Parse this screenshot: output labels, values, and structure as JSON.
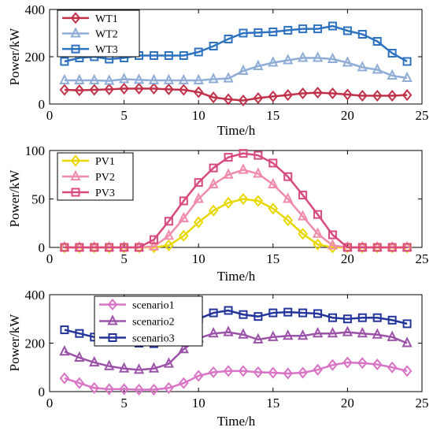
{
  "chart_data": [
    {
      "type": "line",
      "xlabel": "Time/h",
      "ylabel": "Power/kW",
      "xlim": [
        0,
        25
      ],
      "ylim": [
        0,
        400
      ],
      "xticks": [
        0,
        5,
        10,
        15,
        20,
        25
      ],
      "yticks": [
        0,
        200,
        400
      ],
      "grid": false,
      "legend_position": "top-left",
      "x": [
        1,
        2,
        3,
        4,
        5,
        6,
        7,
        8,
        9,
        10,
        11,
        12,
        13,
        14,
        15,
        16,
        17,
        18,
        19,
        20,
        21,
        22,
        23,
        24
      ],
      "series": [
        {
          "name": "WT1",
          "color": "#c0314a",
          "marker": "diamond",
          "values": [
            60,
            58,
            60,
            62,
            65,
            65,
            65,
            62,
            60,
            50,
            28,
            20,
            15,
            25,
            32,
            38,
            45,
            48,
            45,
            40,
            35,
            35,
            35,
            38
          ]
        },
        {
          "name": "WT2",
          "color": "#8fadd6",
          "marker": "triangle",
          "values": [
            100,
            100,
            100,
            98,
            105,
            102,
            100,
            100,
            100,
            100,
            105,
            108,
            140,
            160,
            175,
            185,
            195,
            195,
            190,
            175,
            155,
            145,
            120,
            110
          ]
        },
        {
          "name": "WT3",
          "color": "#2e73c0",
          "marker": "square",
          "values": [
            180,
            195,
            200,
            190,
            195,
            205,
            205,
            205,
            205,
            220,
            245,
            275,
            300,
            302,
            305,
            312,
            318,
            318,
            330,
            310,
            295,
            265,
            215,
            180
          ]
        }
      ]
    },
    {
      "type": "line",
      "xlabel": "Time/h",
      "ylabel": "Power/kW",
      "xlim": [
        0,
        25
      ],
      "ylim": [
        0,
        100
      ],
      "xticks": [
        0,
        5,
        10,
        15,
        20,
        25
      ],
      "yticks": [
        0,
        50,
        100
      ],
      "grid": false,
      "legend_position": "top-left",
      "x": [
        1,
        2,
        3,
        4,
        5,
        6,
        7,
        8,
        9,
        10,
        11,
        12,
        13,
        14,
        15,
        16,
        17,
        18,
        19,
        20,
        21,
        22,
        23,
        24
      ],
      "series": [
        {
          "name": "PV1",
          "color": "#e8d800",
          "marker": "diamond",
          "values": [
            0,
            0,
            0,
            0,
            0,
            0,
            0,
            2,
            12,
            26,
            38,
            46,
            50,
            48,
            40,
            28,
            14,
            3,
            0,
            0,
            0,
            0,
            0,
            0
          ]
        },
        {
          "name": "PV2",
          "color": "#f08caa",
          "marker": "triangle",
          "values": [
            0,
            0,
            0,
            0,
            0,
            0,
            1,
            12,
            30,
            50,
            65,
            75,
            80,
            76,
            65,
            50,
            32,
            14,
            2,
            0,
            0,
            0,
            0,
            0
          ]
        },
        {
          "name": "PV3",
          "color": "#d84a7c",
          "marker": "square",
          "values": [
            0,
            0,
            0,
            0,
            0,
            0,
            8,
            27,
            48,
            67,
            82,
            93,
            97,
            95,
            87,
            73,
            54,
            34,
            13,
            0,
            0,
            0,
            0,
            0
          ]
        }
      ]
    },
    {
      "type": "line",
      "xlabel": "Time/h",
      "ylabel": "Power/kW",
      "xlim": [
        0,
        25
      ],
      "ylim": [
        0,
        400
      ],
      "xticks": [
        0,
        5,
        10,
        15,
        20,
        25
      ],
      "yticks": [
        0,
        200,
        400
      ],
      "grid": false,
      "legend_position": "top-left",
      "x": [
        1,
        2,
        3,
        4,
        5,
        6,
        7,
        8,
        9,
        10,
        11,
        12,
        13,
        14,
        15,
        16,
        17,
        18,
        19,
        20,
        21,
        22,
        23,
        24
      ],
      "series": [
        {
          "name": "scenario1",
          "color": "#d873c6",
          "marker": "diamond",
          "values": [
            55,
            35,
            15,
            10,
            10,
            8,
            8,
            15,
            35,
            65,
            80,
            85,
            85,
            80,
            78,
            75,
            78,
            90,
            110,
            120,
            118,
            112,
            100,
            85
          ]
        },
        {
          "name": "scenario2",
          "color": "#9b52a8",
          "marker": "triangle",
          "values": [
            165,
            140,
            120,
            105,
            95,
            90,
            95,
            115,
            175,
            220,
            240,
            245,
            235,
            215,
            225,
            230,
            230,
            240,
            240,
            245,
            240,
            235,
            225,
            200
          ]
        },
        {
          "name": "scenario3",
          "color": "#23359a",
          "marker": "square",
          "values": [
            255,
            240,
            225,
            215,
            205,
            200,
            198,
            210,
            250,
            300,
            325,
            335,
            318,
            310,
            325,
            328,
            325,
            322,
            305,
            300,
            305,
            305,
            295,
            280
          ]
        }
      ]
    }
  ]
}
